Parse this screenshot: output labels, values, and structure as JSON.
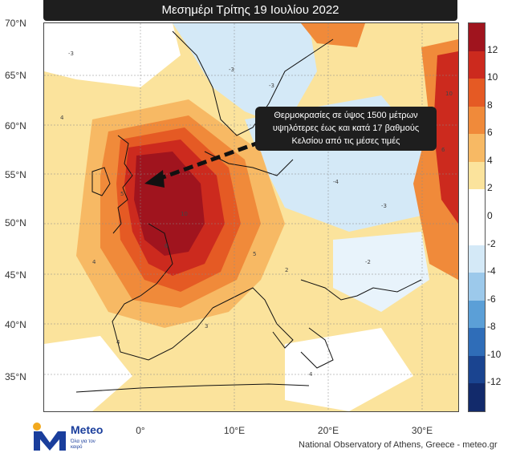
{
  "title": "Μεσημέρι Τρίτης 19 Ιουλίου 2022",
  "callout": {
    "lines": [
      "Θερμοκρασίες σε ύψος 1500 μέτρων",
      "υψηλότερες έως και κατά 17 βαθμούς",
      "Κελσίου από τις μέσες τιμές"
    ]
  },
  "latitudes": [
    "70°N",
    "65°N",
    "60°N",
    "55°N",
    "50°N",
    "45°N",
    "40°N",
    "35°N"
  ],
  "longitudes": [
    "0°",
    "10°E",
    "20°E",
    "30°E"
  ],
  "colorbar": {
    "ticks": [
      "12",
      "10",
      "8",
      "6",
      "4",
      "2",
      "0",
      "-2",
      "-4",
      "-6",
      "-8",
      "-10",
      "-12"
    ],
    "colors": [
      "#a0141e",
      "#cc2a1e",
      "#e55a24",
      "#f08a3a",
      "#f7b964",
      "#fbe39c",
      "#ffffff",
      "#ffffff",
      "#d4e9f7",
      "#9cc9eb",
      "#5b9fd7",
      "#2f6db8",
      "#1a4490",
      "#122a6b"
    ]
  },
  "logo": {
    "name": "Meteo",
    "tagline": "Όλα για τον καιρό"
  },
  "credit": "National Observatory of Athens, Greece - meteo.gr",
  "colors": {
    "hot": "#a0141e",
    "warm": "#e55a24",
    "mild": "#fbe39c",
    "cool": "#d4e9f7",
    "accent_logo": "#1a3e9c",
    "logo_dot": "#f2a91e"
  },
  "contour_labels": [
    "5",
    "4",
    "3",
    "2",
    "-3",
    "-4",
    "-2",
    "10",
    "6"
  ]
}
